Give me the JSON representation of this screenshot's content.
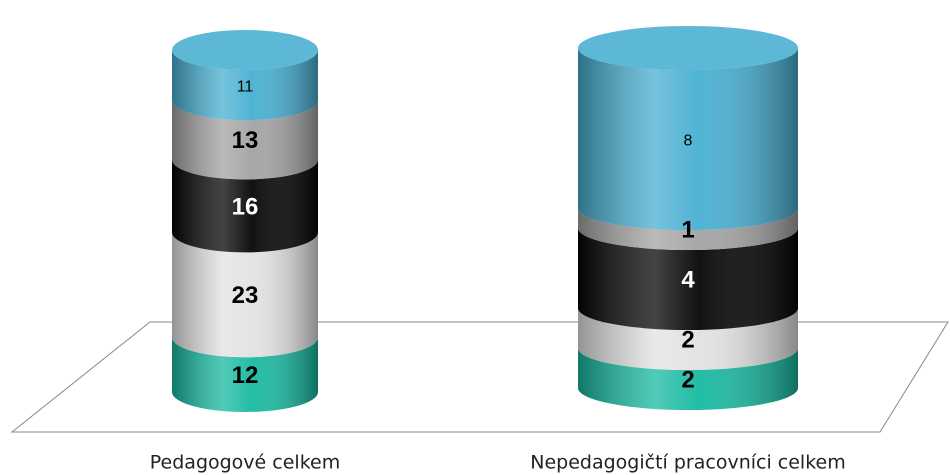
{
  "chart_data": {
    "type": "cylinder",
    "stacked": "percent",
    "categories": [
      "Pedagogové celkem",
      "Nepedagogičtí pracovníci celkem"
    ],
    "series": [
      {
        "color": "#17b9a0",
        "values": [
          12,
          2
        ]
      },
      {
        "color": "#e2e2e2",
        "values": [
          23,
          2
        ]
      },
      {
        "color": "#050505",
        "values": [
          16,
          4
        ]
      },
      {
        "color": "#a3a3a3",
        "values": [
          13,
          1
        ]
      },
      {
        "color": "#47afd1",
        "values": [
          11,
          8
        ]
      }
    ]
  }
}
